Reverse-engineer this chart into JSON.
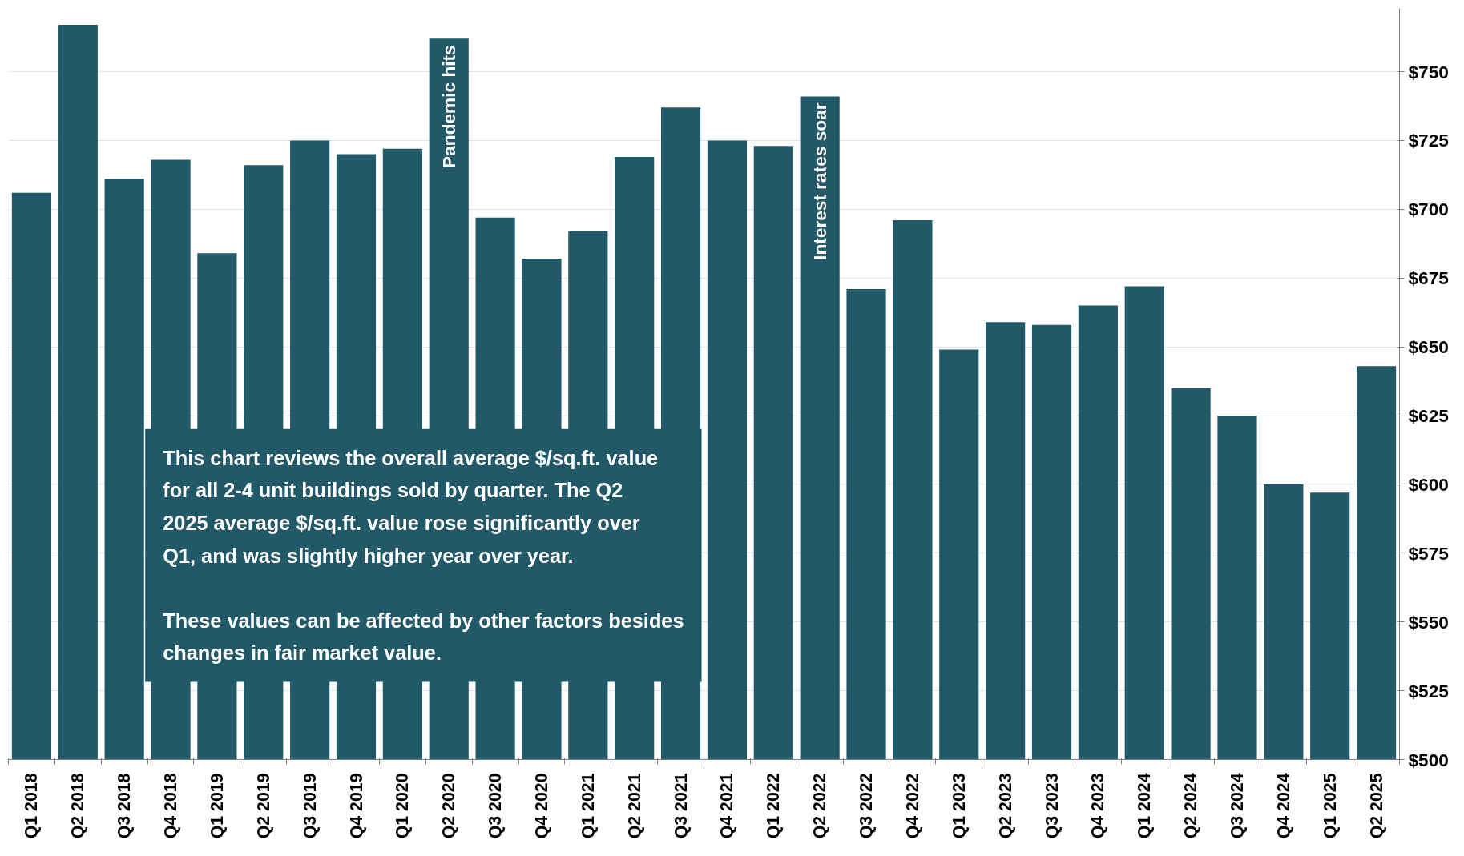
{
  "chart_data": {
    "type": "bar",
    "categories": [
      "Q1 2018",
      "Q2 2018",
      "Q3 2018",
      "Q4 2018",
      "Q1 2019",
      "Q2 2019",
      "Q3 2019",
      "Q4 2019",
      "Q1 2020",
      "Q2 2020",
      "Q3 2020",
      "Q4 2020",
      "Q1 2021",
      "Q2 2021",
      "Q3 2021",
      "Q4 2021",
      "Q1 2022",
      "Q2 2022",
      "Q3 2022",
      "Q4 2022",
      "Q1 2023",
      "Q2 2023",
      "Q3 2023",
      "Q4 2023",
      "Q1 2024",
      "Q2 2024",
      "Q3 2024",
      "Q4 2024",
      "Q1 2025",
      "Q2 2025"
    ],
    "values": [
      706,
      767,
      711,
      718,
      684,
      716,
      725,
      720,
      722,
      762,
      697,
      682,
      692,
      719,
      737,
      725,
      723,
      741,
      671,
      696,
      649,
      659,
      658,
      665,
      672,
      635,
      625,
      600,
      597,
      643
    ],
    "color": "#215968",
    "ylim": [
      500,
      773
    ],
    "yticks": [
      {
        "value": 500,
        "label": "$500"
      },
      {
        "value": 525,
        "label": "$525"
      },
      {
        "value": 550,
        "label": "$550"
      },
      {
        "value": 575,
        "label": "$575"
      },
      {
        "value": 600,
        "label": "$600"
      },
      {
        "value": 625,
        "label": "$625"
      },
      {
        "value": 650,
        "label": "$650"
      },
      {
        "value": 675,
        "label": "$675"
      },
      {
        "value": 700,
        "label": "$700"
      },
      {
        "value": 725,
        "label": "$725"
      },
      {
        "value": 750,
        "label": "$750"
      }
    ],
    "grid": "y",
    "annotations": [
      {
        "text": "Pandemic hits",
        "x": "Q2 2020",
        "y": 762
      },
      {
        "text": "Interest rates soar",
        "x": "Q2 2022",
        "y": 741
      },
      "This chart reviews the overall average $/sq.ft. value for all 2-4 unit buildings sold by quarter. The Q2 2025 average $/sq.ft. value rose significantly over Q1, and was slightly higher year over year.",
      "These values can be affected by other factors besides changes in fair market value."
    ]
  }
}
